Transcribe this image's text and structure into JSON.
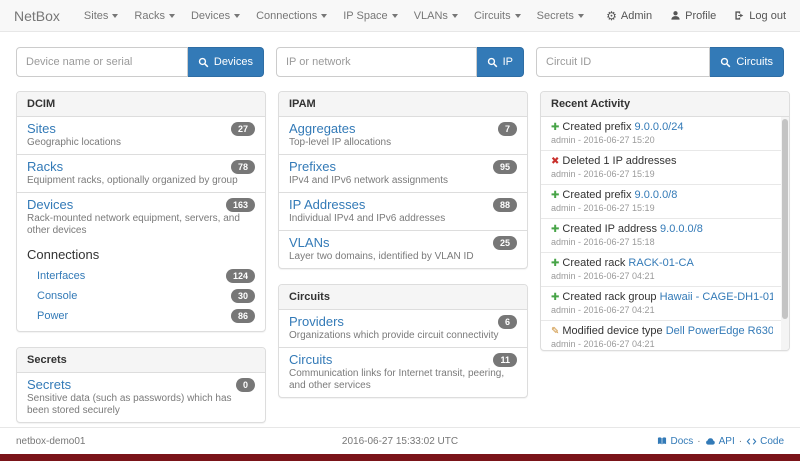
{
  "colors": {
    "accent": "#337ab7",
    "badge": "#777777",
    "success": "#47a447",
    "danger": "#c9302c",
    "warning": "#c8882a",
    "banner": "#7a1419"
  },
  "icons": {
    "plus": "✚",
    "remove": "✖",
    "pencil": "✎"
  },
  "navbar": {
    "brand": "NetBox",
    "items": [
      {
        "label": "Sites"
      },
      {
        "label": "Racks"
      },
      {
        "label": "Devices"
      },
      {
        "label": "Connections"
      },
      {
        "label": "IP Space"
      },
      {
        "label": "VLANs"
      },
      {
        "label": "Circuits"
      },
      {
        "label": "Secrets"
      }
    ],
    "right": [
      {
        "label": "Admin",
        "icon": "gear-icon"
      },
      {
        "label": "Profile",
        "icon": "user-icon"
      },
      {
        "label": "Log out",
        "icon": "logout-icon"
      }
    ]
  },
  "search": {
    "device": {
      "placeholder": "Device name or serial",
      "button": "Devices"
    },
    "ip": {
      "placeholder": "IP or network",
      "button": "IP"
    },
    "circuit": {
      "placeholder": "Circuit ID",
      "button": "Circuits"
    }
  },
  "panels": {
    "dcim": {
      "title": "DCIM",
      "items": [
        {
          "label": "Sites",
          "count": "27",
          "description": "Geographic locations"
        },
        {
          "label": "Racks",
          "count": "78",
          "description": "Equipment racks, optionally organized by group"
        },
        {
          "label": "Devices",
          "count": "163",
          "description": "Rack-mounted network equipment, servers, and other devices"
        }
      ],
      "connections": {
        "title": "Connections",
        "items": [
          {
            "label": "Interfaces",
            "count": "124"
          },
          {
            "label": "Console",
            "count": "30"
          },
          {
            "label": "Power",
            "count": "86"
          }
        ]
      }
    },
    "secrets": {
      "title": "Secrets",
      "items": [
        {
          "label": "Secrets",
          "count": "0",
          "description": "Sensitive data (such as passwords) which has been stored securely"
        }
      ]
    },
    "ipam": {
      "title": "IPAM",
      "items": [
        {
          "label": "Aggregates",
          "count": "7",
          "description": "Top-level IP allocations"
        },
        {
          "label": "Prefixes",
          "count": "95",
          "description": "IPv4 and IPv6 network assignments"
        },
        {
          "label": "IP Addresses",
          "count": "88",
          "description": "Individual IPv4 and IPv6 addresses"
        },
        {
          "label": "VLANs",
          "count": "25",
          "description": "Layer two domains, identified by VLAN ID"
        }
      ]
    },
    "circuits": {
      "title": "Circuits",
      "items": [
        {
          "label": "Providers",
          "count": "6",
          "description": "Organizations which provide circuit connectivity"
        },
        {
          "label": "Circuits",
          "count": "11",
          "description": "Communication links for Internet transit, peering, and other services"
        }
      ]
    },
    "activity": {
      "title": "Recent Activity",
      "items": [
        {
          "icon": "plus",
          "action": "Created prefix",
          "target": "9.0.0.0/24",
          "meta": "admin - 2016-06-27 15:20"
        },
        {
          "icon": "remove",
          "action": "Deleted 1 IP addresses",
          "target": "",
          "meta": "admin - 2016-06-27 15:19"
        },
        {
          "icon": "plus",
          "action": "Created prefix",
          "target": "9.0.0.0/8",
          "meta": "admin - 2016-06-27 15:19"
        },
        {
          "icon": "plus",
          "action": "Created IP address",
          "target": "9.0.0.0/8",
          "meta": "admin - 2016-06-27 15:18"
        },
        {
          "icon": "plus",
          "action": "Created rack",
          "target": "RACK-01-CA",
          "meta": "admin - 2016-06-27 04:21"
        },
        {
          "icon": "plus",
          "action": "Created rack group",
          "target": "Hawaii - CAGE-DH1-01",
          "meta": "admin - 2016-06-27 04:21"
        },
        {
          "icon": "pencil",
          "action": "Modified device type",
          "target": "Dell PowerEdge R630",
          "meta": "admin - 2016-06-27 04:21"
        }
      ]
    }
  },
  "footer": {
    "hostname": "netbox-demo01",
    "timestamp": "2016-06-27 15:33:02 UTC",
    "separator": "·",
    "links": [
      {
        "label": "Docs"
      },
      {
        "label": "API"
      },
      {
        "label": "Code"
      }
    ]
  }
}
